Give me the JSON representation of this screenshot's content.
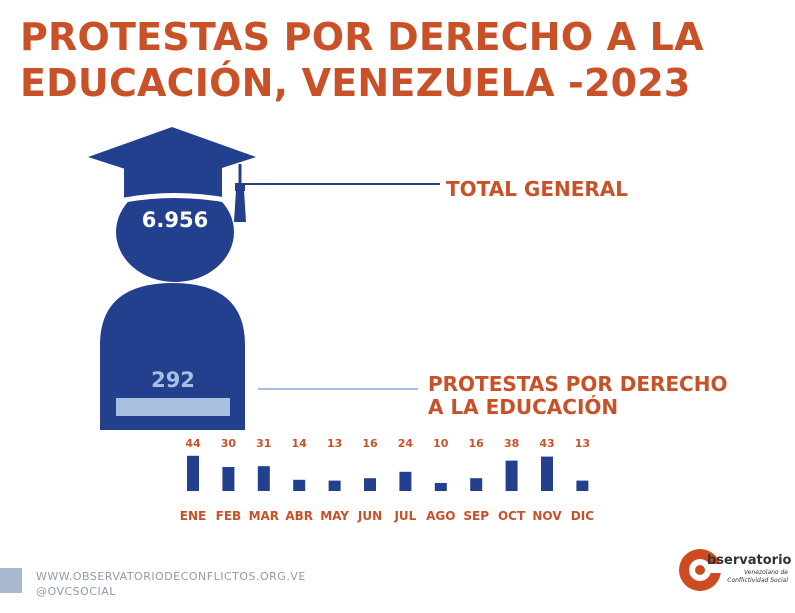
{
  "title": {
    "line1": "PROTESTAS POR DERECHO A LA",
    "line2": "EDUCACIÓN, VENEZUELA -2023"
  },
  "summary": {
    "total_label": "TOTAL GENERAL",
    "total_value": "6.956",
    "edu_label_line1": "PROTESTAS POR DERECHO",
    "edu_label_line2": "A LA EDUCACIÓN",
    "edu_value": "292"
  },
  "chart_data": {
    "type": "bar",
    "categories": [
      "ENE",
      "FEB",
      "MAR",
      "ABR",
      "MAY",
      "JUN",
      "JUL",
      "AGO",
      "SEP",
      "OCT",
      "NOV",
      "DIC"
    ],
    "values": [
      44,
      30,
      31,
      14,
      13,
      16,
      24,
      10,
      16,
      38,
      43,
      13
    ],
    "title": "",
    "xlabel": "",
    "ylabel": "",
    "ylim": [
      0,
      50
    ],
    "grid": false,
    "legend": "none",
    "colors": {
      "bar": "#23408e",
      "value_label": "#c95128",
      "category_label": "#c95128"
    }
  },
  "footer": {
    "website": "WWW.OBSERVATORIODECONFLICTOS.ORG.VE",
    "handle": "@OVCSOCIAL"
  },
  "logo": {
    "main": "bservatorio",
    "sub_line1": "Venezolano de",
    "sub_line2": "Conflictividad Social"
  },
  "colors": {
    "accent": "#c95128",
    "figure": "#23408e",
    "light": "#a9bfe0",
    "leader_total": "#2b3f7a",
    "leader_edu": "#a9bfe0"
  }
}
